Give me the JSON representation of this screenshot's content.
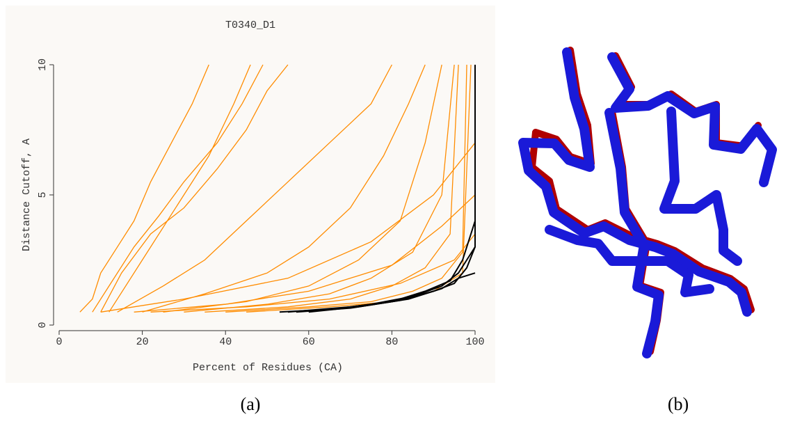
{
  "panels": {
    "a": "(a)",
    "b": "(b)"
  },
  "chart_data": {
    "type": "line",
    "title": "T0340_D1",
    "x_label": "Percent of Residues (CA)",
    "y_label": "Distance Cutoff, A",
    "xlim": [
      0,
      100
    ],
    "ylim": [
      0,
      10
    ],
    "xticks": [
      0,
      20,
      40,
      60,
      80,
      100
    ],
    "yticks": [
      0,
      5,
      10
    ],
    "series": [
      {
        "color": "#ff8c00",
        "x": [
          5,
          8,
          10,
          14,
          18,
          22,
          27,
          32,
          36
        ],
        "values": [
          0.5,
          1,
          2,
          3,
          4,
          5.5,
          7,
          8.5,
          10
        ]
      },
      {
        "color": "#ff8c00",
        "x": [
          8,
          12,
          18,
          24,
          30,
          38,
          44,
          49
        ],
        "values": [
          0.5,
          1.5,
          3,
          4.2,
          5.5,
          7,
          8.5,
          10
        ]
      },
      {
        "color": "#ff8c00",
        "x": [
          10,
          15,
          22,
          30,
          38,
          45,
          50,
          55
        ],
        "values": [
          0.5,
          2,
          3.5,
          4.5,
          6,
          7.5,
          9,
          10
        ]
      },
      {
        "color": "#ff8c00",
        "x": [
          14,
          25,
          35,
          45,
          55,
          65,
          75,
          80
        ],
        "values": [
          0.5,
          1.5,
          2.5,
          4,
          5.5,
          7,
          8.5,
          10
        ]
      },
      {
        "color": "#ff8c00",
        "x": [
          20,
          35,
          50,
          60,
          70,
          78,
          84,
          88
        ],
        "values": [
          0.5,
          1.2,
          2,
          3,
          4.5,
          6.5,
          8.5,
          10
        ]
      },
      {
        "color": "#ff8c00",
        "x": [
          25,
          45,
          60,
          72,
          82,
          88,
          92
        ],
        "values": [
          0.5,
          0.9,
          1.5,
          2.5,
          4,
          7,
          10
        ]
      },
      {
        "color": "#ff8c00",
        "x": [
          30,
          50,
          65,
          75,
          85,
          92,
          95
        ],
        "values": [
          0.5,
          0.8,
          1.2,
          1.8,
          2.8,
          5,
          10
        ]
      },
      {
        "color": "#ff8c00",
        "x": [
          35,
          55,
          70,
          80,
          88,
          94,
          96
        ],
        "values": [
          0.5,
          0.7,
          1,
          1.5,
          2.2,
          3.5,
          10
        ]
      },
      {
        "color": "#ff8c00",
        "x": [
          40,
          60,
          75,
          85,
          92,
          97,
          98
        ],
        "values": [
          0.5,
          0.7,
          0.9,
          1.3,
          1.8,
          2.8,
          10
        ]
      },
      {
        "color": "#ff8c00",
        "x": [
          18,
          40,
          60,
          80,
          92,
          100
        ],
        "values": [
          0.5,
          0.8,
          1.3,
          2.3,
          3.8,
          5
        ]
      },
      {
        "color": "#ff8c00",
        "x": [
          22,
          45,
          65,
          82,
          95,
          100
        ],
        "values": [
          0.5,
          0.7,
          1,
          1.6,
          2.5,
          3.5
        ]
      },
      {
        "color": "#ff8c00",
        "x": [
          10,
          30,
          55,
          75,
          90,
          100
        ],
        "values": [
          0.5,
          1,
          1.8,
          3.2,
          5,
          7
        ]
      },
      {
        "color": "#ff8c00",
        "x": [
          45,
          65,
          80,
          90,
          97,
          99
        ],
        "values": [
          0.5,
          0.7,
          0.9,
          1.3,
          2,
          10
        ]
      },
      {
        "color": "#ff8c00",
        "x": [
          12,
          20,
          28,
          36,
          42,
          46
        ],
        "values": [
          0.5,
          2.5,
          4.5,
          6.5,
          8.5,
          10
        ]
      },
      {
        "color": "#000000",
        "x": [
          53,
          65,
          75,
          85,
          92,
          96,
          98,
          100,
          100
        ],
        "values": [
          0.5,
          0.6,
          0.8,
          1.1,
          1.5,
          2,
          2.5,
          3,
          10
        ]
      },
      {
        "color": "#000000",
        "x": [
          55,
          70,
          80,
          88,
          94,
          97,
          100
        ],
        "values": [
          0.5,
          0.7,
          0.9,
          1.3,
          1.7,
          2.5,
          4
        ]
      },
      {
        "color": "#000000",
        "x": [
          57,
          70,
          82,
          90,
          95,
          98,
          100
        ],
        "values": [
          0.5,
          0.65,
          0.95,
          1.3,
          1.6,
          2.2,
          3
        ]
      },
      {
        "color": "#000000",
        "x": [
          60,
          72,
          84,
          92,
          96,
          100
        ],
        "values": [
          0.5,
          0.7,
          1,
          1.4,
          1.8,
          2
        ]
      }
    ]
  }
}
